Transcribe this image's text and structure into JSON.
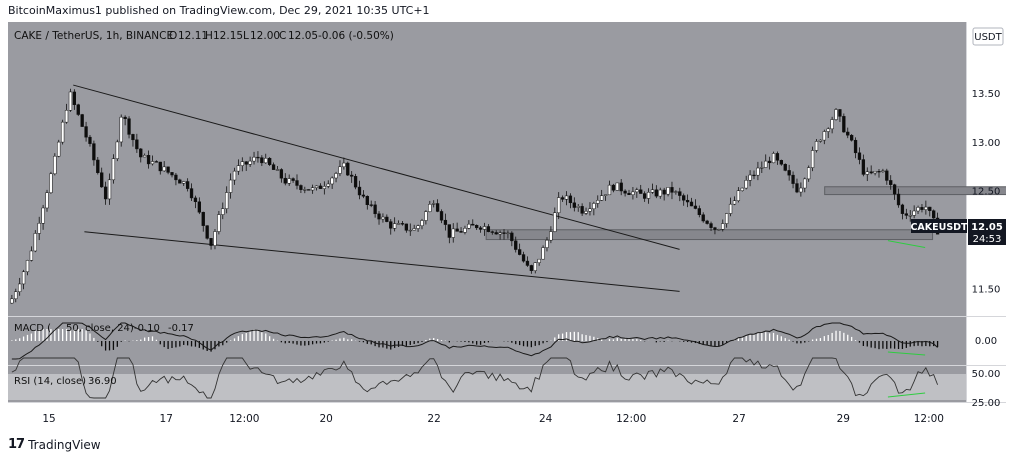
{
  "header": {
    "published": "BitcoinMaximus1 published on TradingView.com, Dec 29, 2021 10:35 UTC+1"
  },
  "legend": {
    "symbol": "CAKE / TetherUS, 1h, BINANCE",
    "o_label": "O",
    "o_value": "12.11",
    "h_label": "H",
    "h_value": "12.15",
    "l_label": "L",
    "l_value": "12.00",
    "c_label": "C",
    "c_value": "12.05",
    "change": "-0.06 (-0.50%)"
  },
  "currency_badge": "USDT",
  "price_badge": {
    "symbol": "CAKEUSDT",
    "price": "12.05",
    "countdown": "24:53"
  },
  "macd": {
    "label": "MACD (",
    "params": "50, close, 24)",
    "v1": "-0.10",
    "v2": "-0.17"
  },
  "rsi": {
    "label": "RSI (14, close)",
    "value": "36.90"
  },
  "footer": {
    "logo": "17",
    "brand": "TradingView"
  },
  "colors": {
    "panel_bg": "#9a9ba1",
    "up": "#ffffff",
    "down": "#0d0d0d",
    "line": "#1a1a1a",
    "zone": "#86878d",
    "divergence": "#2ecc40",
    "rsi_band": "#bfc0c4"
  },
  "chart_data": {
    "type": "candlestick",
    "symbol": "CAKE / TetherUS",
    "interval": "1h",
    "x_tick_labels": [
      "15",
      "17",
      "12:00",
      "20",
      "22",
      "24",
      "12:00",
      "27",
      "29",
      "12:00"
    ],
    "y_tick_labels": [
      "13.50",
      "13.00",
      "12.50",
      "12.00",
      "11.50"
    ],
    "ylim": [
      11.3,
      14.0
    ],
    "close_path": [
      {
        "t": 0.0,
        "p": 11.35
      },
      {
        "t": 0.5,
        "p": 11.8
      },
      {
        "t": 1.2,
        "p": 12.8
      },
      {
        "t": 1.6,
        "p": 13.5
      },
      {
        "t": 2.1,
        "p": 13.0
      },
      {
        "t": 2.6,
        "p": 12.4
      },
      {
        "t": 3.0,
        "p": 13.3
      },
      {
        "t": 3.5,
        "p": 12.85
      },
      {
        "t": 4.0,
        "p": 12.75
      },
      {
        "t": 4.8,
        "p": 12.55
      },
      {
        "t": 5.4,
        "p": 11.95
      },
      {
        "t": 6.0,
        "p": 12.7
      },
      {
        "t": 6.7,
        "p": 12.85
      },
      {
        "t": 7.4,
        "p": 12.6
      },
      {
        "t": 8.2,
        "p": 12.5
      },
      {
        "t": 9.0,
        "p": 12.75
      },
      {
        "t": 9.6,
        "p": 12.35
      },
      {
        "t": 10.2,
        "p": 12.15
      },
      {
        "t": 10.9,
        "p": 12.1
      },
      {
        "t": 11.4,
        "p": 12.42
      },
      {
        "t": 11.8,
        "p": 12.05
      },
      {
        "t": 12.6,
        "p": 12.15
      },
      {
        "t": 13.4,
        "p": 12.05
      },
      {
        "t": 14.0,
        "p": 11.65
      },
      {
        "t": 14.4,
        "p": 11.95
      },
      {
        "t": 14.8,
        "p": 12.45
      },
      {
        "t": 15.4,
        "p": 12.3
      },
      {
        "t": 16.2,
        "p": 12.55
      },
      {
        "t": 17.0,
        "p": 12.45
      },
      {
        "t": 17.8,
        "p": 12.5
      },
      {
        "t": 18.4,
        "p": 12.3
      },
      {
        "t": 19.0,
        "p": 12.1
      },
      {
        "t": 19.8,
        "p": 12.6
      },
      {
        "t": 20.5,
        "p": 12.85
      },
      {
        "t": 21.2,
        "p": 12.5
      },
      {
        "t": 21.7,
        "p": 13.0
      },
      {
        "t": 22.2,
        "p": 13.3
      },
      {
        "t": 22.6,
        "p": 13.0
      },
      {
        "t": 23.0,
        "p": 12.65
      },
      {
        "t": 23.5,
        "p": 12.7
      },
      {
        "t": 24.0,
        "p": 12.25
      },
      {
        "t": 24.6,
        "p": 12.35
      },
      {
        "t": 25.0,
        "p": 12.05
      }
    ],
    "upper_trendline": [
      {
        "t": 1.7,
        "p": 13.58
      },
      {
        "t": 18.0,
        "p": 11.9
      }
    ],
    "lower_trendline": [
      {
        "t": 2.0,
        "p": 12.08
      },
      {
        "t": 18.0,
        "p": 11.47
      }
    ],
    "zones": [
      {
        "t0": 12.8,
        "t1": 24.8,
        "low": 12.0,
        "high": 12.1
      },
      {
        "t0": 21.9,
        "t1": 28.0,
        "low": 12.46,
        "high": 12.54
      }
    ],
    "divergence": [
      {
        "t": 23.6,
        "p": 12.05
      },
      {
        "t": 24.6,
        "p": 11.98
      }
    ],
    "macd_yticks": [
      "0.00"
    ],
    "rsi_yticks": [
      "50.00",
      "25.00"
    ]
  }
}
